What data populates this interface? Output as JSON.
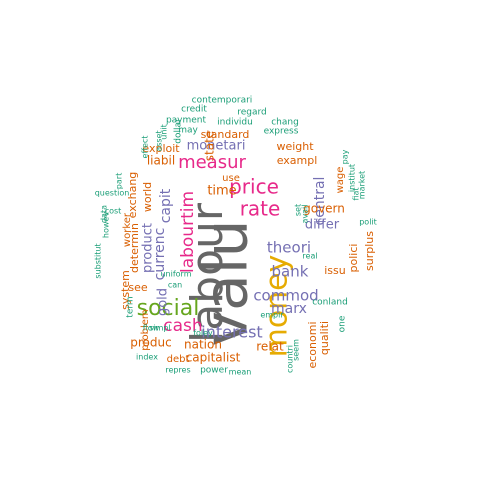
{
  "palette": {
    "teal": "#1b9e77",
    "orange": "#d95f02",
    "purple": "#7570b3",
    "magenta": "#e7298a",
    "green": "#66a61e",
    "gold": "#e6ab02",
    "gray": "#666666"
  },
  "words": [
    {
      "text": "valu",
      "color": "gray"
    },
    {
      "text": "labour",
      "color": "gray"
    },
    {
      "text": "money",
      "color": "gold"
    },
    {
      "text": "social",
      "color": "green"
    },
    {
      "text": "price",
      "color": "magenta"
    },
    {
      "text": "rate",
      "color": "magenta"
    },
    {
      "text": "measur",
      "color": "magenta"
    },
    {
      "text": "labourtim",
      "color": "magenta"
    },
    {
      "text": "cash",
      "color": "magenta"
    },
    {
      "text": "interest",
      "color": "purple"
    },
    {
      "text": "theori",
      "color": "purple"
    },
    {
      "text": "commod",
      "color": "purple"
    },
    {
      "text": "bank",
      "color": "purple"
    },
    {
      "text": "marx",
      "color": "purple"
    },
    {
      "text": "currenc",
      "color": "purple"
    },
    {
      "text": "capit",
      "color": "purple"
    },
    {
      "text": "monetari",
      "color": "purple"
    },
    {
      "text": "central",
      "color": "purple"
    },
    {
      "text": "differ",
      "color": "purple"
    },
    {
      "text": "product",
      "color": "purple"
    },
    {
      "text": "gold",
      "color": "purple"
    },
    {
      "text": "time",
      "color": "orange"
    },
    {
      "text": "state",
      "color": "orange"
    },
    {
      "text": "liabil",
      "color": "orange"
    },
    {
      "text": "exploit",
      "color": "orange"
    },
    {
      "text": "standard",
      "color": "orange"
    },
    {
      "text": "weight",
      "color": "orange"
    },
    {
      "text": "exampl",
      "color": "orange"
    },
    {
      "text": "govern",
      "color": "orange"
    },
    {
      "text": "issu",
      "color": "orange"
    },
    {
      "text": "surplus",
      "color": "orange"
    },
    {
      "text": "polici",
      "color": "orange"
    },
    {
      "text": "world",
      "color": "orange"
    },
    {
      "text": "determin",
      "color": "orange"
    },
    {
      "text": "exchang",
      "color": "orange"
    },
    {
      "text": "system",
      "color": "orange"
    },
    {
      "text": "produc",
      "color": "orange"
    },
    {
      "text": "nation",
      "color": "orange"
    },
    {
      "text": "relat",
      "color": "orange"
    },
    {
      "text": "capitalist",
      "color": "orange"
    },
    {
      "text": "economi",
      "color": "orange"
    },
    {
      "text": "qualiti",
      "color": "orange"
    },
    {
      "text": "see",
      "color": "orange"
    },
    {
      "text": "problem",
      "color": "orange"
    },
    {
      "text": "debt",
      "color": "orange"
    },
    {
      "text": "use",
      "color": "orange"
    },
    {
      "text": "wage",
      "color": "orange"
    },
    {
      "text": "worker",
      "color": "orange"
    },
    {
      "text": "one",
      "color": "teal"
    },
    {
      "text": "contemporari",
      "color": "teal"
    },
    {
      "text": "credit",
      "color": "teal"
    },
    {
      "text": "regard",
      "color": "teal"
    },
    {
      "text": "payment",
      "color": "teal"
    },
    {
      "text": "individu",
      "color": "teal"
    },
    {
      "text": "chang",
      "color": "teal"
    },
    {
      "text": "express",
      "color": "teal"
    },
    {
      "text": "may",
      "color": "teal"
    },
    {
      "text": "dollar",
      "color": "teal"
    },
    {
      "text": "unit",
      "color": "teal"
    },
    {
      "text": "asset",
      "color": "teal"
    },
    {
      "text": "effect",
      "color": "teal"
    },
    {
      "text": "pay",
      "color": "teal"
    },
    {
      "text": "institut",
      "color": "teal"
    },
    {
      "text": "market",
      "color": "teal"
    },
    {
      "text": "fiat",
      "color": "teal"
    },
    {
      "text": "polit",
      "color": "teal"
    },
    {
      "text": "question",
      "color": "teal"
    },
    {
      "text": "part",
      "color": "teal"
    },
    {
      "text": "cost",
      "color": "teal"
    },
    {
      "text": "data",
      "color": "teal"
    },
    {
      "text": "howev",
      "color": "teal"
    },
    {
      "text": "substitut",
      "color": "teal"
    },
    {
      "text": "uniform",
      "color": "teal"
    },
    {
      "text": "can",
      "color": "teal"
    },
    {
      "text": "set",
      "color": "teal"
    },
    {
      "text": "avail",
      "color": "teal"
    },
    {
      "text": "real",
      "color": "teal"
    },
    {
      "text": "conland",
      "color": "teal"
    },
    {
      "text": "empir",
      "color": "teal"
    },
    {
      "text": "term",
      "color": "teal"
    },
    {
      "text": "simpl",
      "color": "teal"
    },
    {
      "text": "flow",
      "color": "teal"
    },
    {
      "text": "foley",
      "color": "teal"
    },
    {
      "text": "index",
      "color": "teal"
    },
    {
      "text": "repres",
      "color": "teal"
    },
    {
      "text": "power",
      "color": "teal"
    },
    {
      "text": "mean",
      "color": "teal"
    },
    {
      "text": "seem",
      "color": "teal"
    },
    {
      "text": "countri",
      "color": "teal"
    },
    {
      "text": "rais",
      "color": "teal"
    }
  ]
}
